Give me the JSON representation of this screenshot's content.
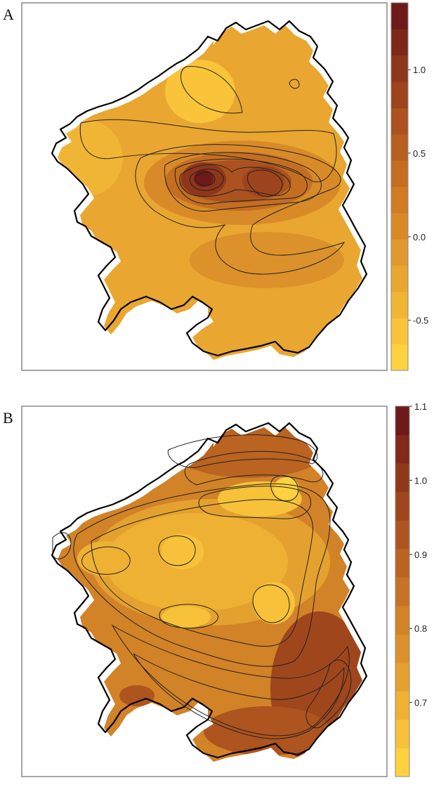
{
  "panels": [
    {
      "label": "A",
      "colorbar": {
        "ticks": [
          "1.0",
          "0.5",
          "0.0",
          "-0.5"
        ],
        "tick_values": [
          1.0,
          0.5,
          0.0,
          -0.5
        ],
        "range": [
          -0.8,
          1.4
        ],
        "colors": [
          "#ffd23f",
          "#f9c43a",
          "#f1b535",
          "#e9a630",
          "#e1982c",
          "#d98a28",
          "#cf7c25",
          "#c46e22",
          "#b86020",
          "#ab521e",
          "#9d441c",
          "#8e361b",
          "#7e281a",
          "#6e1a19"
        ]
      }
    },
    {
      "label": "B",
      "colorbar": {
        "ticks": [
          "1.1",
          "1.0",
          "0.9",
          "0.8",
          "0.7"
        ],
        "tick_values": [
          1.1,
          1.0,
          0.9,
          0.8,
          0.7
        ],
        "range": [
          0.6,
          1.1
        ],
        "colors": [
          "#ffd23f",
          "#f7c23a",
          "#efb134",
          "#e5a12f",
          "#dc912b",
          "#d28227",
          "#c77224",
          "#bb6321",
          "#ae541f",
          "#a0461d",
          "#91381b",
          "#81291a",
          "#6e1a19"
        ]
      }
    }
  ],
  "chart_data": [
    {
      "type": "heatmap",
      "title": "",
      "colorbar_ticks": [
        1.0,
        0.5,
        0.0,
        -0.5
      ],
      "value_range": [
        -0.8,
        1.4
      ],
      "colormap": "yellow-to-dark-red",
      "contours": true,
      "max_region": "centre-east, ~1.1",
      "min_region": "north-west coast, ~-0.4"
    },
    {
      "type": "heatmap",
      "title": "",
      "colorbar_ticks": [
        1.1,
        1.0,
        0.9,
        0.8,
        0.7
      ],
      "value_range": [
        0.6,
        1.1
      ],
      "colormap": "yellow-to-dark-red",
      "contours": true,
      "max_region": "south-east and north coast, ~0.95",
      "min_region": "interior, ~0.7"
    }
  ]
}
